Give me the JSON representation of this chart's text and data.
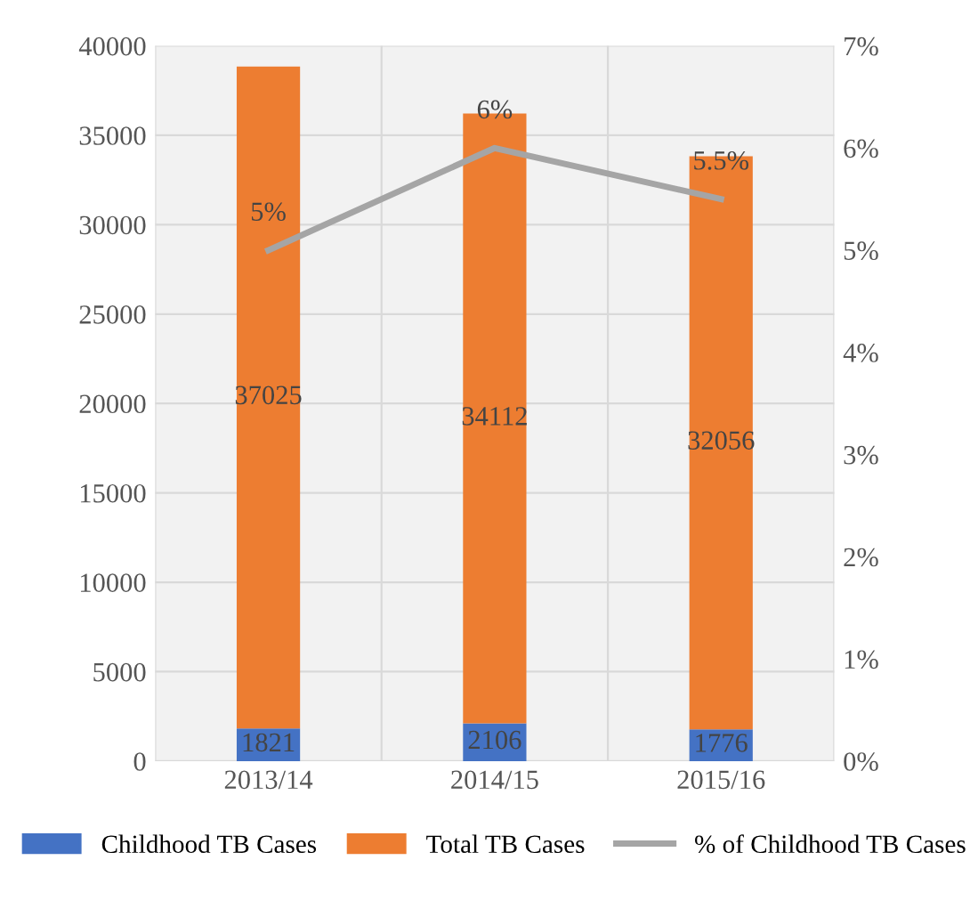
{
  "chart_data": {
    "type": "bar",
    "stacked": true,
    "categories": [
      "2013/14",
      "2014/15",
      "2015/16"
    ],
    "series": [
      {
        "name": "Childhood TB Cases",
        "color": "#4472c4",
        "values": [
          1821,
          2106,
          1776
        ]
      },
      {
        "name": "Total TB Cases",
        "color": "#ed7d31",
        "values": [
          37025,
          34112,
          32056
        ]
      },
      {
        "name": "% of Childhood TB Cases",
        "type": "line",
        "axis": "y2",
        "color": "#a5a5a5",
        "values": [
          5,
          6,
          5.5
        ],
        "value_labels": [
          "5%",
          "6%",
          "5.5%"
        ]
      }
    ],
    "data_labels": true,
    "ylim": [
      0,
      40000
    ],
    "yticks": [
      0,
      5000,
      10000,
      15000,
      20000,
      25000,
      30000,
      35000,
      40000
    ],
    "y2lim": [
      0,
      7
    ],
    "y2ticks": [
      {
        "value": 0,
        "label": "0%"
      },
      {
        "value": 1,
        "label": "1%"
      },
      {
        "value": 2,
        "label": "2%"
      },
      {
        "value": 3,
        "label": "3%"
      },
      {
        "value": 4,
        "label": "4%"
      },
      {
        "value": 5,
        "label": "5%"
      },
      {
        "value": 6,
        "label": "6%"
      },
      {
        "value": 7,
        "label": "7%"
      }
    ],
    "grid": true,
    "legend": "bottom"
  }
}
